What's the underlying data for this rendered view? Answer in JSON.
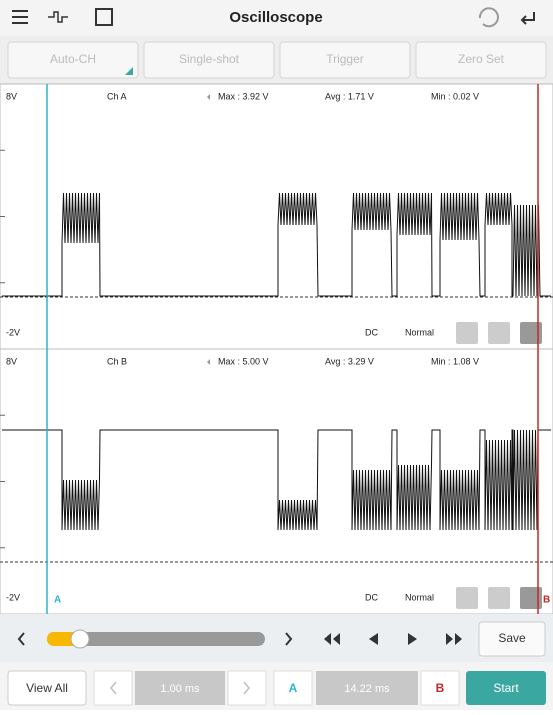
{
  "header": {
    "title": "Oscilloscope"
  },
  "toolbar": {
    "buttons": [
      "Auto-CH",
      "Single-shot",
      "Trigger",
      "Zero Set"
    ]
  },
  "channels": [
    {
      "top_label": "8V",
      "name": "Ch A",
      "max": "Max : 3.92 V",
      "avg": "Avg : 1.71 V",
      "min": "Min : 0.02 V",
      "bottom_label": "-2V",
      "coupling": "DC",
      "mode": "Normal"
    },
    {
      "top_label": "8V",
      "name": "Ch B",
      "max": "Max : 5.00 V",
      "avg": "Avg : 3.29 V",
      "min": "Min : 1.08 V",
      "bottom_label": "-2V",
      "coupling": "DC",
      "mode": "Normal"
    }
  ],
  "cursors": {
    "a": "A",
    "b": "B"
  },
  "controls": {
    "save": "Save"
  },
  "footer": {
    "view_all": "View All",
    "time_base": "1.00 ms",
    "cursor_a": "A",
    "delta": "14.22 ms",
    "cursor_b": "B",
    "start": "Start"
  }
}
